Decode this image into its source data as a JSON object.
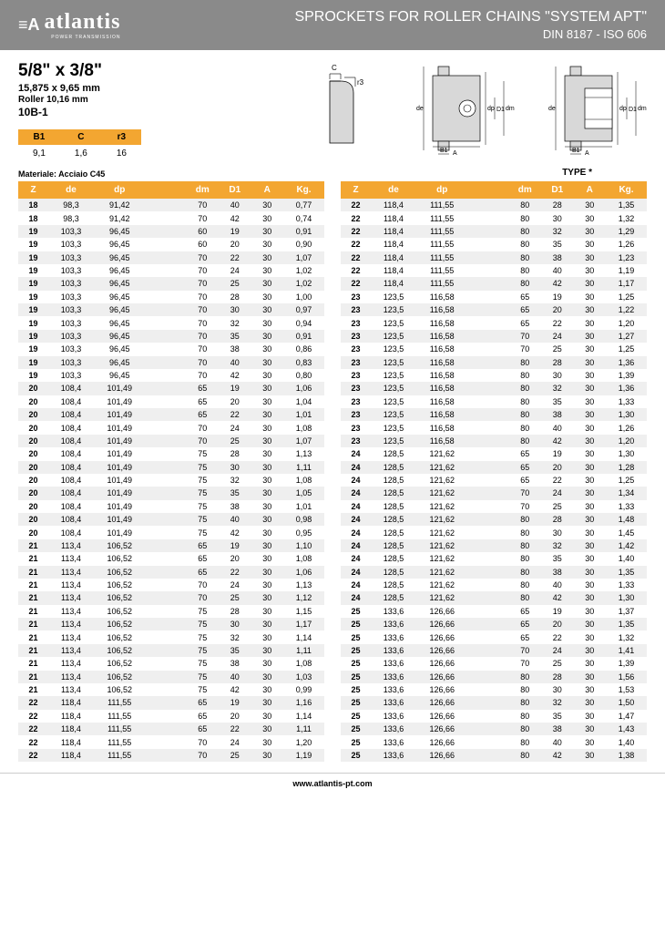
{
  "header": {
    "logo_text": "atlantis",
    "logo_sub": "POWER TRANSMISSION",
    "title": "SPROCKETS FOR ROLLER CHAINS \"SYSTEM APT\"",
    "subtitle": "DIN 8187 - ISO 606"
  },
  "specs": {
    "size_main": "5/8\" x 3/8\"",
    "size_sub": "15,875 x 9,65 mm",
    "roller": "Roller 10,16 mm",
    "code": "10B-1",
    "mini_headers": [
      "B1",
      "C",
      "r3"
    ],
    "mini_values": [
      "9,1",
      "1,6",
      "16"
    ],
    "material": "Materiale: Acciaio C45",
    "type": "TYPE *"
  },
  "table_headers": [
    "Z",
    "de",
    "dp",
    "dm",
    "D1",
    "A",
    "Kg."
  ],
  "left_rows": [
    [
      "18",
      "98,3",
      "91,42",
      "70",
      "40",
      "30",
      "0,77"
    ],
    [
      "18",
      "98,3",
      "91,42",
      "70",
      "42",
      "30",
      "0,74"
    ],
    [
      "19",
      "103,3",
      "96,45",
      "60",
      "19",
      "30",
      "0,91"
    ],
    [
      "19",
      "103,3",
      "96,45",
      "60",
      "20",
      "30",
      "0,90"
    ],
    [
      "19",
      "103,3",
      "96,45",
      "70",
      "22",
      "30",
      "1,07"
    ],
    [
      "19",
      "103,3",
      "96,45",
      "70",
      "24",
      "30",
      "1,02"
    ],
    [
      "19",
      "103,3",
      "96,45",
      "70",
      "25",
      "30",
      "1,02"
    ],
    [
      "19",
      "103,3",
      "96,45",
      "70",
      "28",
      "30",
      "1,00"
    ],
    [
      "19",
      "103,3",
      "96,45",
      "70",
      "30",
      "30",
      "0,97"
    ],
    [
      "19",
      "103,3",
      "96,45",
      "70",
      "32",
      "30",
      "0,94"
    ],
    [
      "19",
      "103,3",
      "96,45",
      "70",
      "35",
      "30",
      "0,91"
    ],
    [
      "19",
      "103,3",
      "96,45",
      "70",
      "38",
      "30",
      "0,86"
    ],
    [
      "19",
      "103,3",
      "96,45",
      "70",
      "40",
      "30",
      "0,83"
    ],
    [
      "19",
      "103,3",
      "96,45",
      "70",
      "42",
      "30",
      "0,80"
    ],
    [
      "20",
      "108,4",
      "101,49",
      "65",
      "19",
      "30",
      "1,06"
    ],
    [
      "20",
      "108,4",
      "101,49",
      "65",
      "20",
      "30",
      "1,04"
    ],
    [
      "20",
      "108,4",
      "101,49",
      "65",
      "22",
      "30",
      "1,01"
    ],
    [
      "20",
      "108,4",
      "101,49",
      "70",
      "24",
      "30",
      "1,08"
    ],
    [
      "20",
      "108,4",
      "101,49",
      "70",
      "25",
      "30",
      "1,07"
    ],
    [
      "20",
      "108,4",
      "101,49",
      "75",
      "28",
      "30",
      "1,13"
    ],
    [
      "20",
      "108,4",
      "101,49",
      "75",
      "30",
      "30",
      "1,11"
    ],
    [
      "20",
      "108,4",
      "101,49",
      "75",
      "32",
      "30",
      "1,08"
    ],
    [
      "20",
      "108,4",
      "101,49",
      "75",
      "35",
      "30",
      "1,05"
    ],
    [
      "20",
      "108,4",
      "101,49",
      "75",
      "38",
      "30",
      "1,01"
    ],
    [
      "20",
      "108,4",
      "101,49",
      "75",
      "40",
      "30",
      "0,98"
    ],
    [
      "20",
      "108,4",
      "101,49",
      "75",
      "42",
      "30",
      "0,95"
    ],
    [
      "21",
      "113,4",
      "106,52",
      "65",
      "19",
      "30",
      "1,10"
    ],
    [
      "21",
      "113,4",
      "106,52",
      "65",
      "20",
      "30",
      "1,08"
    ],
    [
      "21",
      "113,4",
      "106,52",
      "65",
      "22",
      "30",
      "1,06"
    ],
    [
      "21",
      "113,4",
      "106,52",
      "70",
      "24",
      "30",
      "1,13"
    ],
    [
      "21",
      "113,4",
      "106,52",
      "70",
      "25",
      "30",
      "1,12"
    ],
    [
      "21",
      "113,4",
      "106,52",
      "75",
      "28",
      "30",
      "1,15"
    ],
    [
      "21",
      "113,4",
      "106,52",
      "75",
      "30",
      "30",
      "1,17"
    ],
    [
      "21",
      "113,4",
      "106,52",
      "75",
      "32",
      "30",
      "1,14"
    ],
    [
      "21",
      "113,4",
      "106,52",
      "75",
      "35",
      "30",
      "1,11"
    ],
    [
      "21",
      "113,4",
      "106,52",
      "75",
      "38",
      "30",
      "1,08"
    ],
    [
      "21",
      "113,4",
      "106,52",
      "75",
      "40",
      "30",
      "1,03"
    ],
    [
      "21",
      "113,4",
      "106,52",
      "75",
      "42",
      "30",
      "0,99"
    ],
    [
      "22",
      "118,4",
      "111,55",
      "65",
      "19",
      "30",
      "1,16"
    ],
    [
      "22",
      "118,4",
      "111,55",
      "65",
      "20",
      "30",
      "1,14"
    ],
    [
      "22",
      "118,4",
      "111,55",
      "65",
      "22",
      "30",
      "1,11"
    ],
    [
      "22",
      "118,4",
      "111,55",
      "70",
      "24",
      "30",
      "1,20"
    ],
    [
      "22",
      "118,4",
      "111,55",
      "70",
      "25",
      "30",
      "1,19"
    ]
  ],
  "right_rows": [
    [
      "22",
      "118,4",
      "111,55",
      "80",
      "28",
      "30",
      "1,35"
    ],
    [
      "22",
      "118,4",
      "111,55",
      "80",
      "30",
      "30",
      "1,32"
    ],
    [
      "22",
      "118,4",
      "111,55",
      "80",
      "32",
      "30",
      "1,29"
    ],
    [
      "22",
      "118,4",
      "111,55",
      "80",
      "35",
      "30",
      "1,26"
    ],
    [
      "22",
      "118,4",
      "111,55",
      "80",
      "38",
      "30",
      "1,23"
    ],
    [
      "22",
      "118,4",
      "111,55",
      "80",
      "40",
      "30",
      "1,19"
    ],
    [
      "22",
      "118,4",
      "111,55",
      "80",
      "42",
      "30",
      "1,17"
    ],
    [
      "23",
      "123,5",
      "116,58",
      "65",
      "19",
      "30",
      "1,25"
    ],
    [
      "23",
      "123,5",
      "116,58",
      "65",
      "20",
      "30",
      "1,22"
    ],
    [
      "23",
      "123,5",
      "116,58",
      "65",
      "22",
      "30",
      "1,20"
    ],
    [
      "23",
      "123,5",
      "116,58",
      "70",
      "24",
      "30",
      "1,27"
    ],
    [
      "23",
      "123,5",
      "116,58",
      "70",
      "25",
      "30",
      "1,25"
    ],
    [
      "23",
      "123,5",
      "116,58",
      "80",
      "28",
      "30",
      "1,36"
    ],
    [
      "23",
      "123,5",
      "116,58",
      "80",
      "30",
      "30",
      "1,39"
    ],
    [
      "23",
      "123,5",
      "116,58",
      "80",
      "32",
      "30",
      "1,36"
    ],
    [
      "23",
      "123,5",
      "116,58",
      "80",
      "35",
      "30",
      "1,33"
    ],
    [
      "23",
      "123,5",
      "116,58",
      "80",
      "38",
      "30",
      "1,30"
    ],
    [
      "23",
      "123,5",
      "116,58",
      "80",
      "40",
      "30",
      "1,26"
    ],
    [
      "23",
      "123,5",
      "116,58",
      "80",
      "42",
      "30",
      "1,20"
    ],
    [
      "24",
      "128,5",
      "121,62",
      "65",
      "19",
      "30",
      "1,30"
    ],
    [
      "24",
      "128,5",
      "121,62",
      "65",
      "20",
      "30",
      "1,28"
    ],
    [
      "24",
      "128,5",
      "121,62",
      "65",
      "22",
      "30",
      "1,25"
    ],
    [
      "24",
      "128,5",
      "121,62",
      "70",
      "24",
      "30",
      "1,34"
    ],
    [
      "24",
      "128,5",
      "121,62",
      "70",
      "25",
      "30",
      "1,33"
    ],
    [
      "24",
      "128,5",
      "121,62",
      "80",
      "28",
      "30",
      "1,48"
    ],
    [
      "24",
      "128,5",
      "121,62",
      "80",
      "30",
      "30",
      "1,45"
    ],
    [
      "24",
      "128,5",
      "121,62",
      "80",
      "32",
      "30",
      "1,42"
    ],
    [
      "24",
      "128,5",
      "121,62",
      "80",
      "35",
      "30",
      "1,40"
    ],
    [
      "24",
      "128,5",
      "121,62",
      "80",
      "38",
      "30",
      "1,35"
    ],
    [
      "24",
      "128,5",
      "121,62",
      "80",
      "40",
      "30",
      "1,33"
    ],
    [
      "24",
      "128,5",
      "121,62",
      "80",
      "42",
      "30",
      "1,30"
    ],
    [
      "25",
      "133,6",
      "126,66",
      "65",
      "19",
      "30",
      "1,37"
    ],
    [
      "25",
      "133,6",
      "126,66",
      "65",
      "20",
      "30",
      "1,35"
    ],
    [
      "25",
      "133,6",
      "126,66",
      "65",
      "22",
      "30",
      "1,32"
    ],
    [
      "25",
      "133,6",
      "126,66",
      "70",
      "24",
      "30",
      "1,41"
    ],
    [
      "25",
      "133,6",
      "126,66",
      "70",
      "25",
      "30",
      "1,39"
    ],
    [
      "25",
      "133,6",
      "126,66",
      "80",
      "28",
      "30",
      "1,56"
    ],
    [
      "25",
      "133,6",
      "126,66",
      "80",
      "30",
      "30",
      "1,53"
    ],
    [
      "25",
      "133,6",
      "126,66",
      "80",
      "32",
      "30",
      "1,50"
    ],
    [
      "25",
      "133,6",
      "126,66",
      "80",
      "35",
      "30",
      "1,47"
    ],
    [
      "25",
      "133,6",
      "126,66",
      "80",
      "38",
      "30",
      "1,43"
    ],
    [
      "25",
      "133,6",
      "126,66",
      "80",
      "40",
      "30",
      "1,40"
    ],
    [
      "25",
      "133,6",
      "126,66",
      "80",
      "42",
      "30",
      "1,38"
    ]
  ],
  "footer": {
    "url": "www.atlantis-pt.com"
  },
  "colors": {
    "header_bg": "#8a8a8a",
    "accent": "#f3a631",
    "row_alt": "#efefef"
  }
}
